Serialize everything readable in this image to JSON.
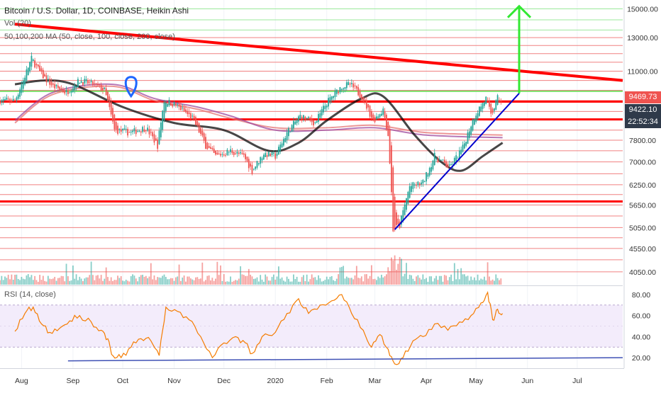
{
  "header": {
    "title": "Bitcoin / U.S. Dollar, 1D, COINBASE, Heikin Ashi",
    "volume_label": "Vol (20)",
    "ma_label": "50,100,200 MA (50, close, 100, close, 200, close)",
    "rsi_label": "RSI (14, close)"
  },
  "price_labels": {
    "current": "9469.73",
    "ma50": "9422.10",
    "countdown": "22:52:34",
    "current_color": "#ef5350",
    "ma50_color": "#2f3a4a",
    "countdown_color": "#2f3a4a"
  },
  "chart_data": {
    "type": "candlestick",
    "title": "Bitcoin / U.S. Dollar, 1D, COINBASE, Heikin Ashi",
    "x_axis_labels": [
      "Aug",
      "Sep",
      "Oct",
      "Nov",
      "Dec",
      "2020",
      "Feb",
      "Mar",
      "Apr",
      "May",
      "Jun",
      "Jul"
    ],
    "y_axis_labels": [
      "15000.00",
      "13000.00",
      "11000.00",
      "7800.00",
      "7000.00",
      "6250.00",
      "5650.00",
      "5050.00",
      "4550.00",
      "4050.00"
    ],
    "ylim": [
      3800,
      15400
    ],
    "price_path": [
      [
        "2019-07-28",
        9500
      ],
      [
        "2019-08-02",
        10500
      ],
      [
        "2019-08-07",
        11700
      ],
      [
        "2019-08-13",
        10800
      ],
      [
        "2019-08-20",
        10200
      ],
      [
        "2019-08-28",
        9900
      ],
      [
        "2019-09-05",
        10500
      ],
      [
        "2019-09-13",
        10300
      ],
      [
        "2019-09-20",
        10000
      ],
      [
        "2019-09-26",
        8200
      ],
      [
        "2019-10-06",
        8100
      ],
      [
        "2019-10-15",
        8300
      ],
      [
        "2019-10-22",
        7600
      ],
      [
        "2019-10-26",
        9500
      ],
      [
        "2019-11-02",
        9300
      ],
      [
        "2019-11-12",
        8700
      ],
      [
        "2019-11-20",
        7600
      ],
      [
        "2019-11-26",
        7200
      ],
      [
        "2019-12-05",
        7400
      ],
      [
        "2019-12-13",
        7200
      ],
      [
        "2019-12-18",
        6700
      ],
      [
        "2019-12-25",
        7300
      ],
      [
        "2020-01-01",
        7200
      ],
      [
        "2020-01-08",
        8100
      ],
      [
        "2020-01-16",
        8800
      ],
      [
        "2020-01-25",
        8500
      ],
      [
        "2020-02-01",
        9400
      ],
      [
        "2020-02-10",
        10200
      ],
      [
        "2020-02-15",
        10300
      ],
      [
        "2020-02-22",
        9700
      ],
      [
        "2020-02-29",
        8600
      ],
      [
        "2020-03-06",
        9100
      ],
      [
        "2020-03-09",
        8000
      ],
      [
        "2020-03-12",
        5000
      ],
      [
        "2020-03-16",
        5100
      ],
      [
        "2020-03-22",
        6200
      ],
      [
        "2020-03-30",
        6300
      ],
      [
        "2020-04-06",
        7200
      ],
      [
        "2020-04-15",
        6800
      ],
      [
        "2020-04-23",
        7500
      ],
      [
        "2020-04-30",
        8800
      ],
      [
        "2020-05-07",
        9600
      ],
      [
        "2020-05-10",
        8800
      ],
      [
        "2020-05-14",
        9600
      ],
      [
        "2020-05-17",
        9470
      ]
    ],
    "ma_lines": [
      {
        "color": "#000000",
        "points": [
          [
            "2019-07-28",
            10300
          ],
          [
            "2019-08-15",
            10500
          ],
          [
            "2019-09-01",
            10300
          ],
          [
            "2019-10-01",
            9200
          ],
          [
            "2019-11-01",
            8500
          ],
          [
            "2019-12-01",
            8200
          ],
          [
            "2019-12-28",
            7400
          ],
          [
            "2020-01-15",
            7700
          ],
          [
            "2020-02-01",
            8600
          ],
          [
            "2020-02-22",
            9600
          ],
          [
            "2020-03-06",
            9700
          ],
          [
            "2020-03-25",
            8000
          ],
          [
            "2020-04-10",
            7000
          ],
          [
            "2020-04-22",
            6700
          ],
          [
            "2020-05-05",
            7200
          ],
          [
            "2020-05-17",
            7700
          ]
        ]
      },
      {
        "color": "#9e4a9e",
        "points": [
          [
            "2019-07-28",
            8600
          ],
          [
            "2019-08-20",
            9900
          ],
          [
            "2019-09-25",
            10300
          ],
          [
            "2019-10-20",
            9600
          ],
          [
            "2019-11-15",
            9200
          ],
          [
            "2019-12-05",
            8800
          ],
          [
            "2020-01-01",
            8200
          ],
          [
            "2020-02-01",
            8200
          ],
          [
            "2020-03-01",
            8300
          ],
          [
            "2020-04-01",
            8000
          ],
          [
            "2020-05-17",
            7900
          ]
        ]
      },
      {
        "color": "#e57373",
        "points": [
          [
            "2019-07-28",
            8500
          ],
          [
            "2019-08-20",
            9800
          ],
          [
            "2019-09-25",
            10200
          ],
          [
            "2019-10-20",
            9500
          ],
          [
            "2019-11-15",
            9100
          ],
          [
            "2019-12-05",
            8700
          ],
          [
            "2020-01-01",
            8300
          ],
          [
            "2020-02-01",
            8300
          ],
          [
            "2020-03-01",
            8400
          ],
          [
            "2020-04-01",
            8100
          ],
          [
            "2020-05-17",
            8000
          ]
        ]
      }
    ],
    "horizontal_levels": [
      4050,
      4300,
      4550,
      4800,
      5050,
      5350,
      5650,
      5950,
      6250,
      6600,
      7000,
      7400,
      7800,
      8200,
      9000,
      9500,
      10000,
      10500,
      11000,
      11500,
      12000,
      12500,
      13000,
      13500,
      14200,
      15000
    ],
    "key_levels": [
      {
        "value": 5750,
        "color": "#ff0000"
      },
      {
        "value": 8650,
        "color": "#ff0000"
      },
      {
        "value": 9450,
        "color": "#ff0000"
      },
      {
        "value": 9950,
        "color": "#7be06a"
      }
    ],
    "downtrend": {
      "from": [
        "2019-07-28",
        13900
      ],
      "to": [
        "2020-08-04",
        10500
      ],
      "color": "#ff0000"
    },
    "uptrend": {
      "from": [
        "2020-03-13",
        5000
      ],
      "to": [
        "2020-05-27",
        9850
      ],
      "color": "#0000cc"
    },
    "target_arrow": {
      "x": "2020-05-27",
      "from": 9850,
      "to": 15200,
      "color": "#33e833"
    },
    "marker": {
      "x": "2019-10-06",
      "value": 10350,
      "color": "#1e66ff"
    },
    "rsi": {
      "y_axis_labels": [
        "80.00",
        "60.00",
        "40.00",
        "20.00"
      ],
      "ylim": [
        12,
        88
      ],
      "band": [
        30,
        70
      ],
      "series": [
        [
          "2019-07-28",
          45
        ],
        [
          "2019-08-03",
          62
        ],
        [
          "2019-08-08",
          68
        ],
        [
          "2019-08-13",
          52
        ],
        [
          "2019-08-18",
          44
        ],
        [
          "2019-08-24",
          48
        ],
        [
          "2019-08-30",
          55
        ],
        [
          "2019-09-05",
          60
        ],
        [
          "2019-09-12",
          54
        ],
        [
          "2019-09-18",
          46
        ],
        [
          "2019-09-22",
          38
        ],
        [
          "2019-09-25",
          22
        ],
        [
          "2019-09-30",
          20
        ],
        [
          "2019-10-06",
          30
        ],
        [
          "2019-10-12",
          38
        ],
        [
          "2019-10-18",
          36
        ],
        [
          "2019-10-23",
          22
        ],
        [
          "2019-10-27",
          68
        ],
        [
          "2019-11-03",
          64
        ],
        [
          "2019-11-10",
          56
        ],
        [
          "2019-11-17",
          40
        ],
        [
          "2019-11-24",
          20
        ],
        [
          "2019-12-01",
          34
        ],
        [
          "2019-12-08",
          40
        ],
        [
          "2019-12-14",
          34
        ],
        [
          "2019-12-18",
          24
        ],
        [
          "2019-12-24",
          40
        ],
        [
          "2020-01-01",
          44
        ],
        [
          "2020-01-08",
          62
        ],
        [
          "2020-01-15",
          76
        ],
        [
          "2020-01-21",
          62
        ],
        [
          "2020-01-28",
          70
        ],
        [
          "2020-02-04",
          74
        ],
        [
          "2020-02-10",
          80
        ],
        [
          "2020-02-16",
          62
        ],
        [
          "2020-02-23",
          46
        ],
        [
          "2020-02-28",
          30
        ],
        [
          "2020-03-04",
          42
        ],
        [
          "2020-03-09",
          28
        ],
        [
          "2020-03-13",
          14
        ],
        [
          "2020-03-18",
          20
        ],
        [
          "2020-03-24",
          36
        ],
        [
          "2020-03-30",
          40
        ],
        [
          "2020-04-06",
          52
        ],
        [
          "2020-04-14",
          46
        ],
        [
          "2020-04-21",
          54
        ],
        [
          "2020-04-28",
          60
        ],
        [
          "2020-05-04",
          72
        ],
        [
          "2020-05-08",
          82
        ],
        [
          "2020-05-11",
          56
        ],
        [
          "2020-05-14",
          66
        ],
        [
          "2020-05-17",
          62
        ]
      ],
      "baseline": {
        "from": [
          "2019-08-29",
          17
        ],
        "to": [
          "2020-08-04",
          20
        ],
        "color": "#3f51b5"
      }
    }
  }
}
